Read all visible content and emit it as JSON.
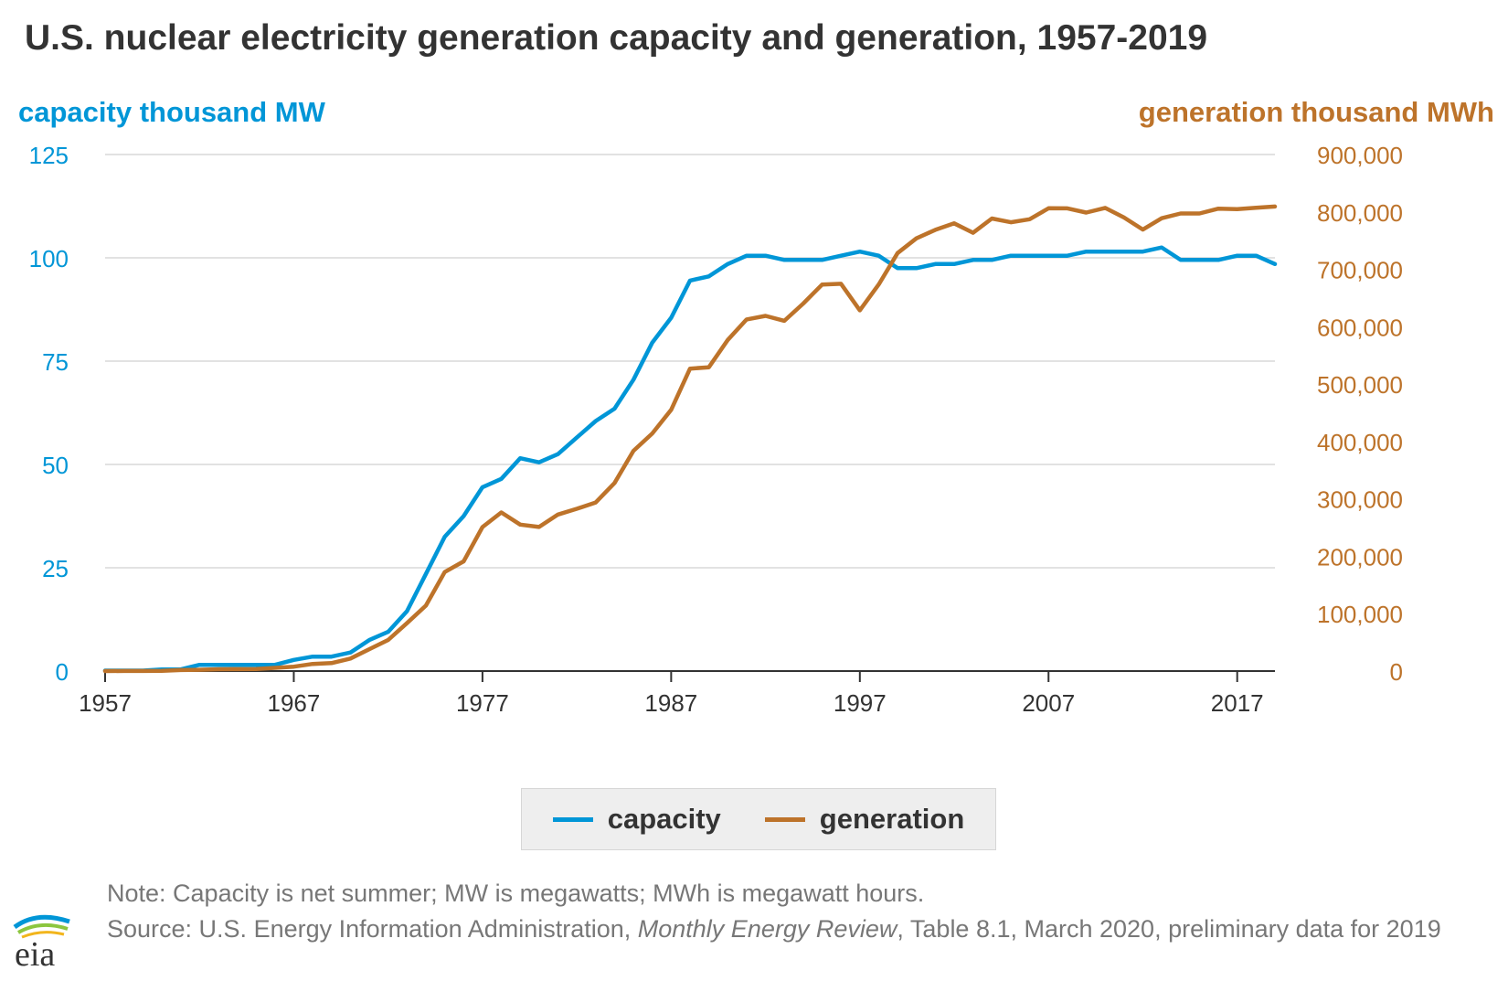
{
  "title": "U.S. nuclear electricity generation capacity and generation, 1957-2019",
  "colors": {
    "capacity": "#0096d7",
    "generation": "#bd732a",
    "grid": "#d9d9d9",
    "axis": "#333333"
  },
  "legend": {
    "items": [
      {
        "label": "capacity"
      },
      {
        "label": "generation"
      }
    ]
  },
  "note": {
    "line1": "Note: Capacity is net summer; MW is megawatts; MWh is megawatt hours.",
    "source_prefix": "Source: U.S. Energy Information Administration, ",
    "source_italic": "Monthly Energy Review",
    "source_suffix": ", Table 8.1, March 2020, preliminary data for 2019"
  },
  "logo": {
    "text": "eia"
  },
  "chart_data": {
    "type": "line",
    "title": "U.S. nuclear electricity generation capacity and generation, 1957-2019",
    "y_left_label": "capacity thousand MW",
    "y_right_label": "generation thousand MWh",
    "xlim": [
      1957,
      2019
    ],
    "xticks": [
      1957,
      1967,
      1977,
      1987,
      1997,
      2007,
      2017
    ],
    "y_left_lim": [
      0,
      125
    ],
    "y_left_ticks": [
      "0",
      "25",
      "50",
      "75",
      "100",
      "125"
    ],
    "y_right_lim": [
      0,
      900000
    ],
    "y_right_ticks": [
      "0",
      "100,000",
      "200,000",
      "300,000",
      "400,000",
      "500,000",
      "600,000",
      "700,000",
      "800,000",
      "900,000"
    ],
    "grid": true,
    "legend_position": "bottom-center",
    "x": [
      1957,
      1958,
      1959,
      1960,
      1961,
      1962,
      1963,
      1964,
      1965,
      1966,
      1967,
      1968,
      1969,
      1970,
      1971,
      1972,
      1973,
      1974,
      1975,
      1976,
      1977,
      1978,
      1979,
      1980,
      1981,
      1982,
      1983,
      1984,
      1985,
      1986,
      1987,
      1988,
      1989,
      1990,
      1991,
      1992,
      1993,
      1994,
      1995,
      1996,
      1997,
      1998,
      1999,
      2000,
      2001,
      2002,
      2003,
      2004,
      2005,
      2006,
      2007,
      2008,
      2009,
      2010,
      2011,
      2012,
      2013,
      2014,
      2015,
      2016,
      2017,
      2018,
      2019
    ],
    "series": [
      {
        "name": "capacity",
        "axis": "left",
        "values": [
          0.1,
          0.1,
          0.1,
          0.4,
          0.4,
          1.5,
          1.5,
          1.5,
          1.5,
          1.5,
          2.7,
          3.5,
          3.5,
          4.5,
          7.5,
          9.5,
          14.5,
          23.5,
          32.5,
          37.5,
          44.5,
          46.5,
          51.5,
          50.5,
          52.5,
          56.5,
          60.5,
          63.5,
          70.5,
          79.5,
          85.5,
          94.5,
          95.5,
          98.5,
          100.5,
          100.5,
          99.5,
          99.5,
          99.5,
          100.5,
          101.5,
          100.5,
          97.5,
          97.5,
          98.5,
          98.5,
          99.5,
          99.5,
          100.5,
          100.5,
          100.5,
          100.5,
          101.5,
          101.5,
          101.5,
          101.5,
          102.5,
          99.5,
          99.5,
          99.5,
          100.5,
          100.5,
          98.5
        ]
      },
      {
        "name": "generation",
        "axis": "right",
        "values": [
          0,
          200,
          200,
          500,
          1700,
          2300,
          3200,
          3300,
          3700,
          5500,
          7700,
          12500,
          13900,
          21800,
          38100,
          54100,
          83500,
          114000,
          172500,
          191100,
          250900,
          276400,
          255200,
          251100,
          272700,
          282800,
          293700,
          327600,
          383700,
          414000,
          455300,
          527000,
          529400,
          576900,
          612600,
          618800,
          610300,
          640400,
          673400,
          674700,
          628600,
          673700,
          728300,
          753900,
          768800,
          780100,
          763700,
          788500,
          782000,
          787200,
          806400,
          806200,
          798900,
          807000,
          790200,
          769300,
          789000,
          797200,
          797200,
          805700,
          804900,
          807100,
          809400
        ]
      }
    ]
  }
}
